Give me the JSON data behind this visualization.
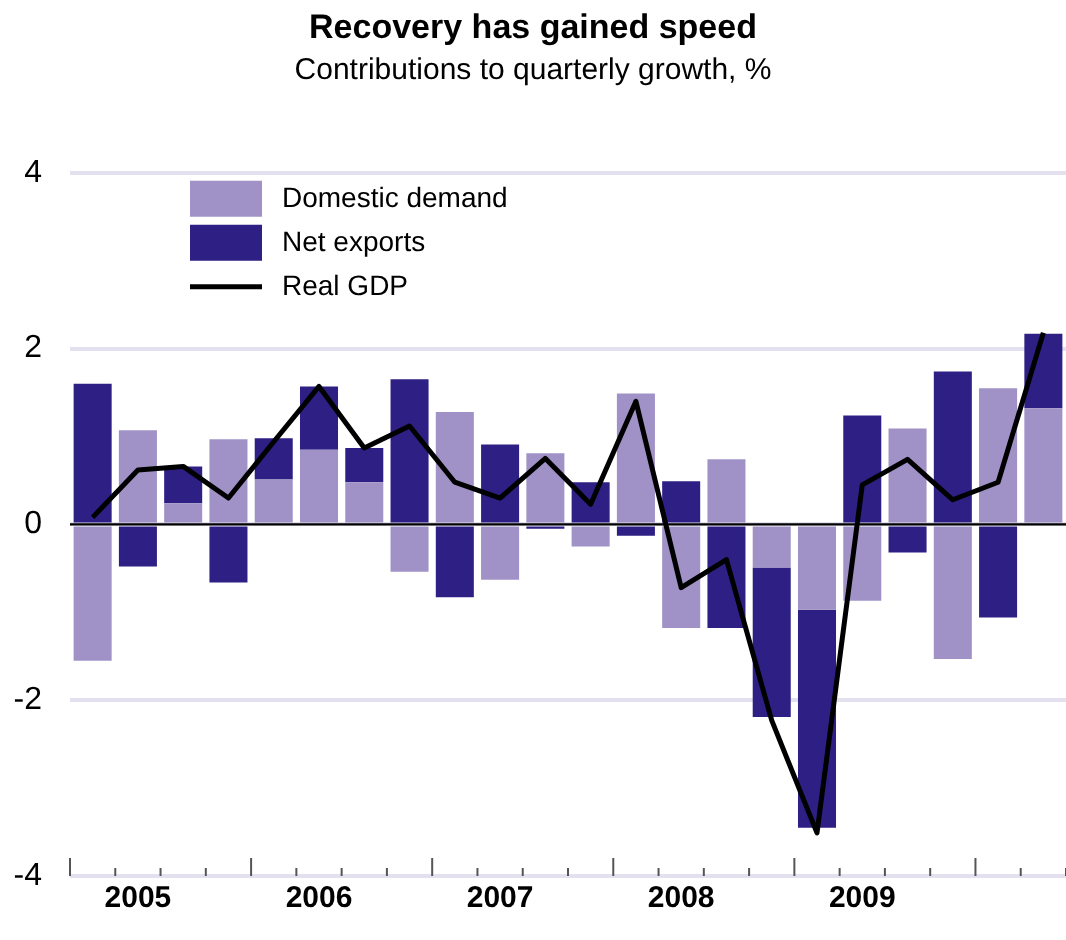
{
  "chart_data": {
    "type": "bar",
    "title": "Recovery has gained speed",
    "subtitle": "Contributions to quarterly growth, %",
    "categories": [
      null,
      "2005",
      null,
      null,
      null,
      "2006",
      null,
      null,
      null,
      "2007",
      null,
      null,
      null,
      "2008",
      null,
      null,
      null,
      "2009",
      null,
      null,
      null,
      null
    ],
    "series": [
      {
        "name": "Domestic demand",
        "color": "#a092c6",
        "values": [
          -1.55,
          1.07,
          0.24,
          0.97,
          0.51,
          0.85,
          0.48,
          -0.54,
          1.28,
          -0.63,
          0.81,
          -0.25,
          1.49,
          -1.18,
          0.74,
          -0.49,
          -0.97,
          -0.87,
          1.09,
          -1.53,
          1.55,
          1.32
        ]
      },
      {
        "name": "Net exports",
        "color": "#2e1f85",
        "values": [
          1.6,
          -0.48,
          0.42,
          -0.66,
          0.47,
          0.72,
          0.39,
          1.65,
          -0.83,
          0.91,
          -0.05,
          0.48,
          -0.13,
          0.49,
          -1.18,
          -1.7,
          -2.48,
          1.24,
          -0.32,
          1.74,
          -1.06,
          0.85
        ]
      },
      {
        "name": "Real GDP",
        "type": "line",
        "color": "#000000",
        "values": [
          0.08,
          0.62,
          0.66,
          0.3,
          0.94,
          1.57,
          0.87,
          1.12,
          0.48,
          0.3,
          0.75,
          0.23,
          1.4,
          -0.72,
          -0.4,
          -2.23,
          -3.51,
          0.45,
          0.74,
          0.28,
          0.48,
          2.18
        ]
      }
    ],
    "stacked": true,
    "ylim": [
      -4,
      4
    ],
    "yticks": [
      -4,
      -2,
      0,
      2,
      4
    ],
    "grid": "y",
    "legend": "top left",
    "marker": "none",
    "line_style": "solid"
  }
}
